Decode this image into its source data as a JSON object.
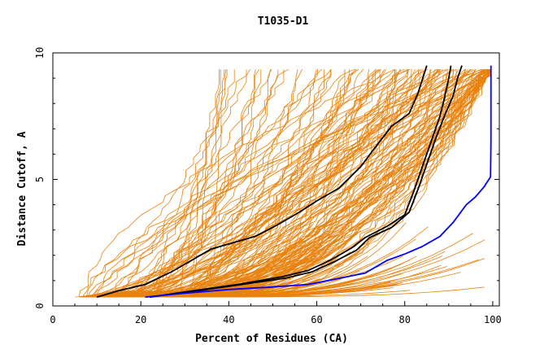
{
  "chart_data": {
    "type": "line",
    "title": "T1035-D1",
    "xlabel": "Percent of Residues (CA)",
    "ylabel": "Distance Cutoff, A",
    "xlim": [
      0,
      101.5
    ],
    "ylim": [
      0,
      10
    ],
    "x_ticks": [
      0,
      20,
      40,
      60,
      80,
      100
    ],
    "y_ticks": [
      0,
      5,
      10
    ],
    "grid": false,
    "colors": {
      "background_models": "#e8820e",
      "highlight_black": "#000000",
      "highlight_blue": "#0000ff"
    },
    "series": [
      {
        "color": "#000000",
        "role": "highlight",
        "points": [
          [
            10,
            0.35
          ],
          [
            15,
            0.6
          ],
          [
            21,
            0.85
          ],
          [
            27,
            1.35
          ],
          [
            31,
            1.75
          ],
          [
            36,
            2.25
          ],
          [
            41,
            2.5
          ],
          [
            46,
            2.75
          ],
          [
            51,
            3.2
          ],
          [
            56,
            3.7
          ],
          [
            60,
            4.15
          ],
          [
            65,
            4.65
          ],
          [
            70,
            5.5
          ],
          [
            73,
            6.2
          ],
          [
            77,
            7.1
          ],
          [
            81,
            7.6
          ],
          [
            83,
            8.4
          ],
          [
            85,
            9.5
          ]
        ]
      },
      {
        "color": "#000000",
        "role": "highlight",
        "points": [
          [
            22,
            0.35
          ],
          [
            32,
            0.6
          ],
          [
            42,
            0.85
          ],
          [
            52,
            1.15
          ],
          [
            58,
            1.4
          ],
          [
            63,
            1.8
          ],
          [
            68,
            2.3
          ],
          [
            71,
            2.7
          ],
          [
            76,
            3.15
          ],
          [
            80,
            3.6
          ],
          [
            82,
            4.5
          ],
          [
            84,
            5.5
          ],
          [
            86,
            6.5
          ],
          [
            88,
            7.5
          ],
          [
            89,
            8.2
          ],
          [
            90,
            9.0
          ],
          [
            90.5,
            9.5
          ]
        ]
      },
      {
        "color": "#000000",
        "role": "highlight",
        "points": [
          [
            22,
            0.35
          ],
          [
            33,
            0.6
          ],
          [
            43,
            0.85
          ],
          [
            53,
            1.1
          ],
          [
            59,
            1.35
          ],
          [
            64,
            1.75
          ],
          [
            69,
            2.2
          ],
          [
            72,
            2.7
          ],
          [
            77,
            3.1
          ],
          [
            81,
            3.7
          ],
          [
            83,
            4.6
          ],
          [
            85,
            5.6
          ],
          [
            87,
            6.6
          ],
          [
            89,
            7.5
          ],
          [
            91,
            8.3
          ],
          [
            92,
            9.0
          ],
          [
            93,
            9.5
          ]
        ]
      },
      {
        "color": "#0000ff",
        "role": "highlight",
        "points": [
          [
            21,
            0.35
          ],
          [
            30,
            0.5
          ],
          [
            40,
            0.65
          ],
          [
            50,
            0.75
          ],
          [
            58,
            0.85
          ],
          [
            64,
            1.05
          ],
          [
            71,
            1.3
          ],
          [
            73,
            1.5
          ],
          [
            76,
            1.8
          ],
          [
            80,
            2.05
          ],
          [
            84,
            2.35
          ],
          [
            88,
            2.75
          ],
          [
            91,
            3.3
          ],
          [
            94,
            4.0
          ],
          [
            96,
            4.3
          ],
          [
            98,
            4.7
          ],
          [
            99.5,
            5.1
          ],
          [
            99.6,
            6.5
          ],
          [
            99.6,
            8.0
          ],
          [
            99.6,
            9.5
          ]
        ]
      }
    ]
  }
}
